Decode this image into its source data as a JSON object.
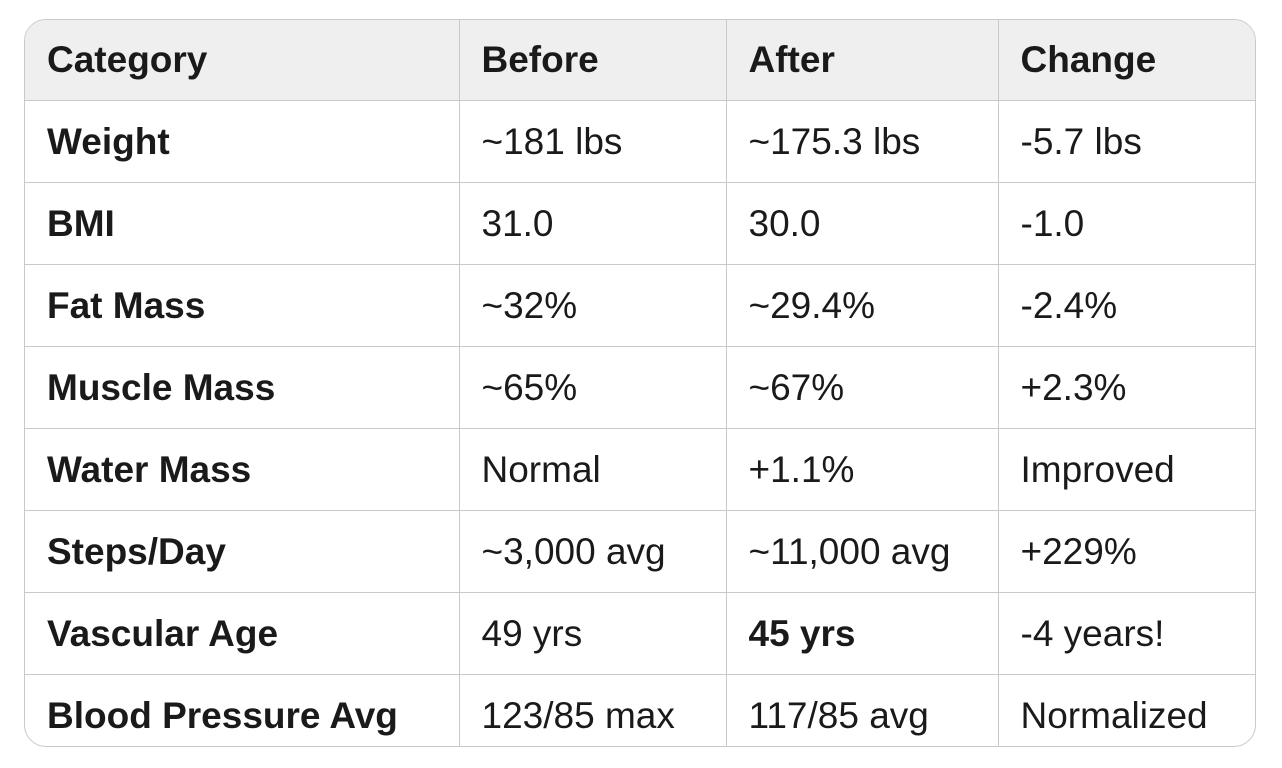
{
  "table": {
    "headers": [
      "Category",
      "Before",
      "After",
      "Change"
    ],
    "rows": [
      [
        "Weight",
        "~181 lbs",
        "~175.3 lbs",
        "-5.7 lbs"
      ],
      [
        "BMI",
        "31.0",
        "30.0",
        "-1.0"
      ],
      [
        "Fat Mass",
        "~32%",
        "~29.4%",
        "-2.4%"
      ],
      [
        "Muscle Mass",
        "~65%",
        "~67%",
        "+2.3%"
      ],
      [
        "Water Mass",
        "Normal",
        "+1.1%",
        "Improved"
      ],
      [
        "Steps/Day",
        "~3,000 avg",
        "~11,000 avg",
        "+229%"
      ],
      [
        "Vascular Age",
        "49 yrs",
        "45 yrs",
        "-4 years!"
      ],
      [
        "Blood Pressure Avg",
        "123/85 max",
        "117/85 avg",
        "Normalized"
      ]
    ]
  }
}
